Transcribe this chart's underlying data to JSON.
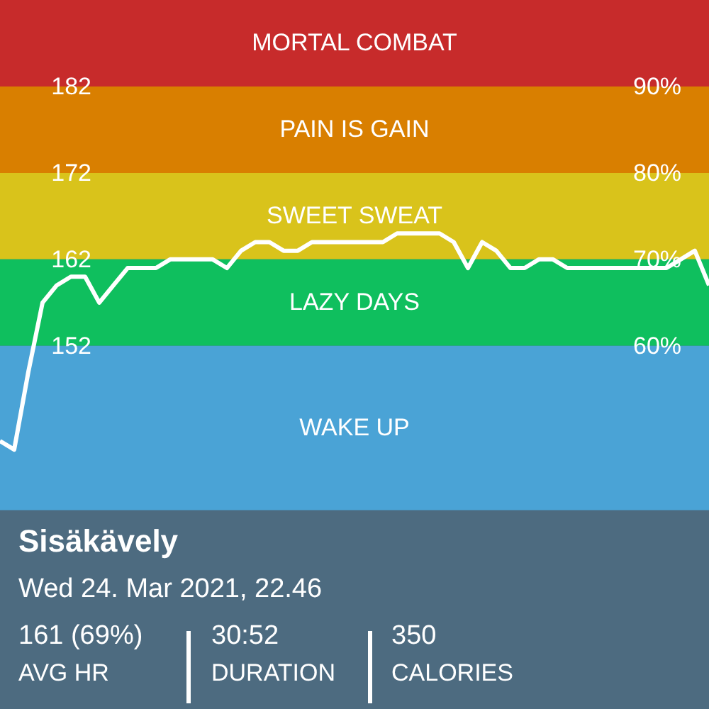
{
  "chart_data": {
    "type": "line",
    "title": "Sisäkävely",
    "subtitle": "Wed 24. Mar 2021, 22.46",
    "annotations": [
      "161 (69%)",
      "AVG HR",
      "30:52",
      "DURATION",
      "350",
      "CALORIES"
    ],
    "categories": [
      null,
      null,
      null,
      null,
      null,
      null,
      null,
      null,
      null,
      null,
      null,
      null,
      null,
      null,
      null,
      null,
      null,
      null,
      null,
      null,
      null,
      null,
      null,
      null,
      null,
      null,
      null,
      null,
      null,
      null,
      null,
      null,
      null,
      null,
      null,
      null,
      null,
      null,
      null,
      null,
      null,
      null,
      null,
      null,
      null,
      null,
      null,
      null,
      null,
      null,
      null
    ],
    "series": [
      {
        "color": "#ffffff",
        "values": [
          141,
          140,
          149,
          157,
          159,
          160,
          160,
          157,
          159,
          161,
          161,
          161,
          162,
          162,
          162,
          162,
          161,
          163,
          164,
          164,
          163,
          163,
          164,
          164,
          164,
          164,
          164,
          164,
          165,
          165,
          165,
          165,
          164,
          161,
          164,
          163,
          161,
          161,
          162,
          162,
          161,
          161,
          161,
          161,
          161,
          161,
          161,
          161,
          162,
          163,
          159
        ]
      }
    ],
    "ylim": [
      110,
      192
    ],
    "yticks": [
      152,
      162,
      172,
      182
    ],
    "y2lim": [
      18,
      100
    ],
    "y2ticks": [
      {
        "value": 60,
        "label": "60%"
      },
      {
        "value": 70,
        "label": "70%"
      },
      {
        "value": 80,
        "label": "80%"
      },
      {
        "value": 90,
        "label": "90%"
      }
    ],
    "bands": [
      {
        "axis": "y",
        "from": 182,
        "to": 192,
        "label": "MORTAL COMBAT",
        "color": "#c72b2b"
      },
      {
        "axis": "y",
        "from": 172,
        "to": 182,
        "label": "PAIN IS GAIN",
        "color": "#d97f00"
      },
      {
        "axis": "y",
        "from": 162,
        "to": 172,
        "label": "SWEET SWEAT",
        "color": "#d9c31b"
      },
      {
        "axis": "y",
        "from": 152,
        "to": 162,
        "label": "LAZY DAYS",
        "color": "#0fbf5e"
      },
      {
        "axis": "y",
        "from": 133,
        "to": 152,
        "label": "WAKE UP",
        "color": "#4aa3d6"
      }
    ],
    "grid": false
  }
}
